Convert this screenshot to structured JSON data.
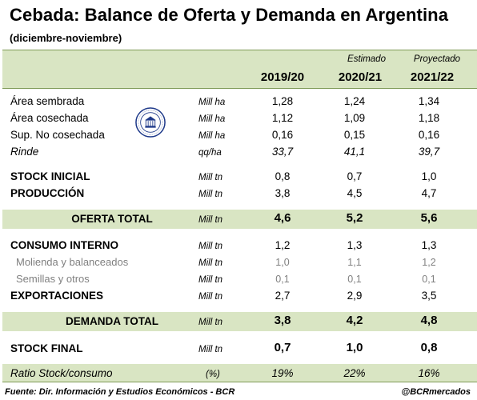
{
  "title": "Cebada: Balance de Oferta y Demanda en Argentina",
  "subtitle": "(diciembre-noviembre)",
  "header": {
    "notes": [
      "",
      "Estimado",
      "Proyectado"
    ],
    "years": [
      "2019/20",
      "2020/21",
      "2021/22"
    ]
  },
  "rows": {
    "area_sembrada": {
      "label": "Área sembrada",
      "unit": "Mill ha",
      "values": [
        "1,28",
        "1,24",
        "1,34"
      ]
    },
    "area_cosechada": {
      "label": "Área cosechada",
      "unit": "Mill ha",
      "values": [
        "1,12",
        "1,09",
        "1,18"
      ]
    },
    "sup_no_cosechada": {
      "label": "Sup. No cosechada",
      "unit": "Mill ha",
      "values": [
        "0,16",
        "0,15",
        "0,16"
      ]
    },
    "rinde": {
      "label": "Rinde",
      "unit": "qq/ha",
      "values": [
        "33,7",
        "41,1",
        "39,7"
      ]
    },
    "stock_inicial": {
      "label": "STOCK INICIAL",
      "unit": "Mill tn",
      "values": [
        "0,8",
        "0,7",
        "1,0"
      ]
    },
    "produccion": {
      "label": "PRODUCCIÓN",
      "unit": "Mill tn",
      "values": [
        "3,8",
        "4,5",
        "4,7"
      ]
    },
    "oferta_total": {
      "label": "OFERTA TOTAL",
      "unit": "Mill tn",
      "values": [
        "4,6",
        "5,2",
        "5,6"
      ]
    },
    "consumo_interno": {
      "label": "CONSUMO INTERNO",
      "unit": "Mill tn",
      "values": [
        "1,2",
        "1,3",
        "1,3"
      ]
    },
    "molienda": {
      "label": "Molienda y balanceados",
      "unit": "Mill tn",
      "values": [
        "1,0",
        "1,1",
        "1,2"
      ]
    },
    "semillas": {
      "label": "Semillas y otros",
      "unit": "Mill tn",
      "values": [
        "0,1",
        "0,1",
        "0,1"
      ]
    },
    "exportaciones": {
      "label": "EXPORTACIONES",
      "unit": "Mill tn",
      "values": [
        "2,7",
        "2,9",
        "3,5"
      ]
    },
    "demanda_total": {
      "label": "DEMANDA TOTAL",
      "unit": "Mill tn",
      "values": [
        "3,8",
        "4,2",
        "4,8"
      ]
    },
    "stock_final": {
      "label": "STOCK FINAL",
      "unit": "Mill tn",
      "values": [
        "0,7",
        "1,0",
        "0,8"
      ]
    },
    "ratio": {
      "label": "Ratio Stock/consumo",
      "unit": "(%)",
      "values": [
        "19%",
        "22%",
        "16%"
      ]
    }
  },
  "seal_text": "BOLSA DE COMERCIO DE ROSARIO",
  "footer": {
    "source": "Fuente: Dir. Información y Estudios Económicos - BCR",
    "handle": "@BCRmercados"
  },
  "colors": {
    "band": "#d9e5c3",
    "rule": "#7f9a57",
    "seal": "#1f3a8a",
    "muted": "#808080"
  },
  "chart_data": {
    "type": "table",
    "title": "Cebada: Balance de Oferta y Demanda en Argentina",
    "subtitle": "(diciembre-noviembre)",
    "columns": [
      "2019/20",
      "2020/21",
      "2021/22"
    ],
    "column_notes": [
      "",
      "Estimado",
      "Proyectado"
    ],
    "rows": [
      {
        "name": "Área sembrada",
        "unit": "Mill ha",
        "values": [
          1.28,
          1.24,
          1.34
        ]
      },
      {
        "name": "Área cosechada",
        "unit": "Mill ha",
        "values": [
          1.12,
          1.09,
          1.18
        ]
      },
      {
        "name": "Sup. No cosechada",
        "unit": "Mill ha",
        "values": [
          0.16,
          0.15,
          0.16
        ]
      },
      {
        "name": "Rinde",
        "unit": "qq/ha",
        "values": [
          33.7,
          41.1,
          39.7
        ]
      },
      {
        "name": "STOCK INICIAL",
        "unit": "Mill tn",
        "values": [
          0.8,
          0.7,
          1.0
        ]
      },
      {
        "name": "PRODUCCIÓN",
        "unit": "Mill tn",
        "values": [
          3.8,
          4.5,
          4.7
        ]
      },
      {
        "name": "OFERTA TOTAL",
        "unit": "Mill tn",
        "values": [
          4.6,
          5.2,
          5.6
        ]
      },
      {
        "name": "CONSUMO INTERNO",
        "unit": "Mill tn",
        "values": [
          1.2,
          1.3,
          1.3
        ]
      },
      {
        "name": "Molienda y balanceados",
        "unit": "Mill tn",
        "values": [
          1.0,
          1.1,
          1.2
        ]
      },
      {
        "name": "Semillas y otros",
        "unit": "Mill tn",
        "values": [
          0.1,
          0.1,
          0.1
        ]
      },
      {
        "name": "EXPORTACIONES",
        "unit": "Mill tn",
        "values": [
          2.7,
          2.9,
          3.5
        ]
      },
      {
        "name": "DEMANDA TOTAL",
        "unit": "Mill tn",
        "values": [
          3.8,
          4.2,
          4.8
        ]
      },
      {
        "name": "STOCK FINAL",
        "unit": "Mill tn",
        "values": [
          0.7,
          1.0,
          0.8
        ]
      },
      {
        "name": "Ratio Stock/consumo",
        "unit": "(%)",
        "values": [
          19,
          22,
          16
        ]
      }
    ]
  }
}
